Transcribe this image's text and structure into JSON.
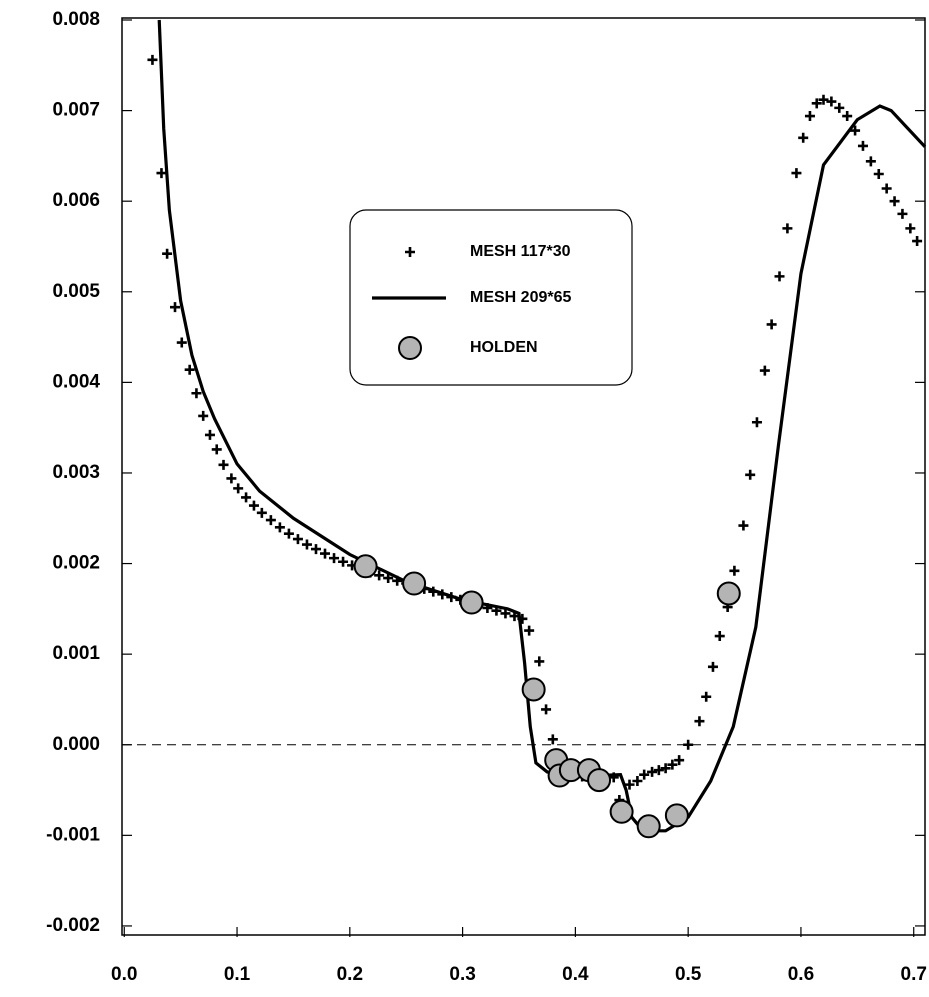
{
  "chart_data": {
    "type": "line",
    "xlim": [
      -0.002,
      0.71
    ],
    "ylim": [
      -0.0021,
      0.008
    ],
    "xticks": [
      {
        "value": 0,
        "label": "0.0"
      },
      0.1,
      0.2,
      0.3,
      0.4,
      0.5,
      0.6,
      0.7
    ],
    "yticks": [
      -0.002,
      -0.001,
      {
        "value": 0,
        "label": "0.000"
      },
      0.001,
      0.002,
      0.003,
      0.004,
      0.005,
      0.006,
      0.007,
      0.008
    ],
    "zero_line": true,
    "series": [
      {
        "name": "MESH 117*30",
        "color": "#000000",
        "marker": "+",
        "x": [
          0.025,
          0.033,
          0.038,
          0.045,
          0.051,
          0.058,
          0.064,
          0.07,
          0.076,
          0.082,
          0.088,
          0.095,
          0.101,
          0.108,
          0.115,
          0.122,
          0.13,
          0.138,
          0.146,
          0.154,
          0.162,
          0.17,
          0.178,
          0.186,
          0.194,
          0.202,
          0.21,
          0.218,
          0.226,
          0.234,
          0.242,
          0.25,
          0.258,
          0.266,
          0.274,
          0.282,
          0.29,
          0.298,
          0.306,
          0.314,
          0.322,
          0.33,
          0.338,
          0.346,
          0.353,
          0.359,
          0.368,
          0.374,
          0.38,
          0.386,
          0.392,
          0.399,
          0.406,
          0.413,
          0.42,
          0.427,
          0.434,
          0.439,
          0.448,
          0.455,
          0.461,
          0.468,
          0.474,
          0.48,
          0.486,
          0.492,
          0.5,
          0.51,
          0.516,
          0.522,
          0.528,
          0.535,
          0.541,
          0.549,
          0.555,
          0.561,
          0.568,
          0.574,
          0.581,
          0.588,
          0.596,
          0.602,
          0.608,
          0.614,
          0.62,
          0.627,
          0.634,
          0.641,
          0.648,
          0.655,
          0.662,
          0.669,
          0.676,
          0.683,
          0.69,
          0.697,
          0.703
        ],
        "values": [
          0.00756,
          0.00631,
          0.00542,
          0.00483,
          0.00444,
          0.00414,
          0.00388,
          0.00363,
          0.00342,
          0.00326,
          0.00309,
          0.00294,
          0.00283,
          0.00273,
          0.00264,
          0.00256,
          0.00248,
          0.0024,
          0.00233,
          0.00227,
          0.00221,
          0.00216,
          0.00211,
          0.00206,
          0.00202,
          0.00198,
          0.00194,
          0.0019,
          0.00187,
          0.00184,
          0.00181,
          0.00178,
          0.00175,
          0.00172,
          0.00169,
          0.00166,
          0.00163,
          0.0016,
          0.00157,
          0.00154,
          0.00151,
          0.00148,
          0.00145,
          0.00142,
          0.00139,
          0.00126,
          0.00092,
          0.00039,
          6e-05,
          -0.00011,
          -0.0003,
          -0.00034,
          -0.00035,
          -0.00035,
          -0.00034,
          -0.00035,
          -0.00036,
          -0.00061,
          -0.00044,
          -0.0004,
          -0.00033,
          -0.0003,
          -0.00028,
          -0.00026,
          -0.00022,
          -0.00017,
          0.0,
          0.00026,
          0.00053,
          0.00086,
          0.0012,
          0.00152,
          0.00192,
          0.00242,
          0.00298,
          0.00356,
          0.00413,
          0.00464,
          0.00517,
          0.0057,
          0.00631,
          0.0067,
          0.00694,
          0.00708,
          0.00712,
          0.0071,
          0.00703,
          0.00694,
          0.00678,
          0.00661,
          0.00644,
          0.0063,
          0.00614,
          0.006,
          0.00586,
          0.0057,
          0.00556
        ]
      },
      {
        "name": "MESH 209*65",
        "color": "#000000",
        "marker": "line",
        "x": [
          0.031,
          0.035,
          0.04,
          0.05,
          0.06,
          0.07,
          0.08,
          0.1,
          0.12,
          0.15,
          0.2,
          0.25,
          0.3,
          0.34,
          0.35,
          0.355,
          0.36,
          0.365,
          0.375,
          0.4,
          0.44,
          0.445,
          0.45,
          0.46,
          0.48,
          0.5,
          0.52,
          0.54,
          0.56,
          0.58,
          0.6,
          0.62,
          0.65,
          0.67,
          0.68,
          0.71
        ],
        "values": [
          0.008,
          0.0068,
          0.0059,
          0.0049,
          0.0043,
          0.0039,
          0.0036,
          0.0031,
          0.0028,
          0.0025,
          0.0021,
          0.0018,
          0.0016,
          0.0015,
          0.00145,
          0.0009,
          0.0002,
          -0.0002,
          -0.0003,
          -0.00035,
          -0.00033,
          -0.0005,
          -0.0008,
          -0.00095,
          -0.00095,
          -0.0008,
          -0.0004,
          0.0002,
          0.0013,
          0.0033,
          0.0052,
          0.0064,
          0.0069,
          0.00705,
          0.007,
          0.0066
        ]
      },
      {
        "name": "HOLDEN",
        "color": "#b4b4b4",
        "marker": "circle",
        "x": [
          0.214,
          0.257,
          0.308,
          0.363,
          0.383,
          0.386,
          0.396,
          0.412,
          0.421,
          0.441,
          0.465,
          0.49,
          0.536
        ],
        "values": [
          0.00197,
          0.00178,
          0.00157,
          0.00061,
          -0.00017,
          -0.00034,
          -0.00028,
          -0.00028,
          -0.00039,
          -0.00074,
          -0.0009,
          -0.00078,
          0.00167
        ]
      }
    ]
  }
}
